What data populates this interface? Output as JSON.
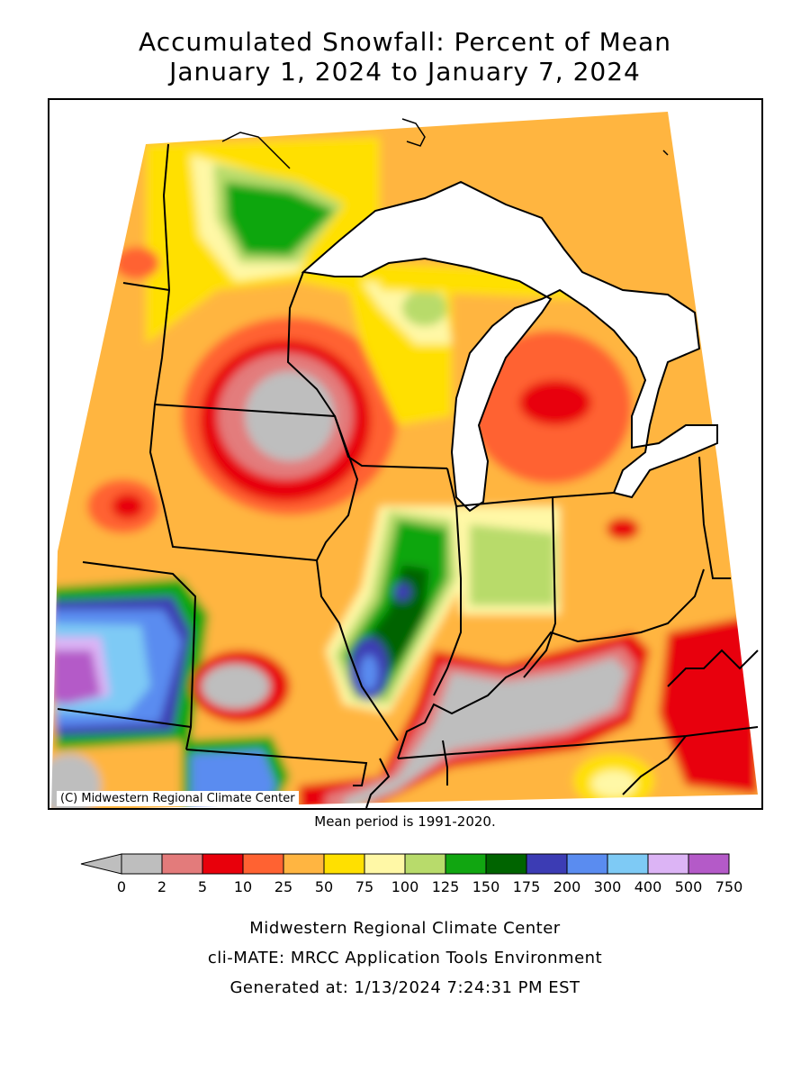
{
  "title": {
    "line1": "Accumulated Snowfall: Percent of Mean",
    "line2": "January 1, 2024 to January 7, 2024"
  },
  "map": {
    "copyright": "(C) Midwestern Regional Climate Center",
    "lake_color": "#ffffff",
    "border_color": "#000000"
  },
  "mean_period": "Mean period is 1991-2020.",
  "legend": {
    "labels": [
      "0",
      "2",
      "5",
      "10",
      "25",
      "50",
      "75",
      "100",
      "125",
      "150",
      "175",
      "200",
      "300",
      "400",
      "500",
      "750"
    ],
    "colors": [
      "#bebebe",
      "#e37b7b",
      "#e8000b",
      "#ff6232",
      "#ffb541",
      "#ffe000",
      "#fff8a6",
      "#b8db6b",
      "#11a611",
      "#006400",
      "#3c3cb4",
      "#5a8cf0",
      "#7ecaf5",
      "#dcb4f5",
      "#b45ac8"
    ],
    "below_color": "#bebebe"
  },
  "footer": {
    "line1": "Midwestern Regional Climate Center",
    "line2": "cli-MATE: MRCC Application Tools Environment",
    "line3": "Generated at: 1/13/2024 7:24:31 PM EST"
  }
}
